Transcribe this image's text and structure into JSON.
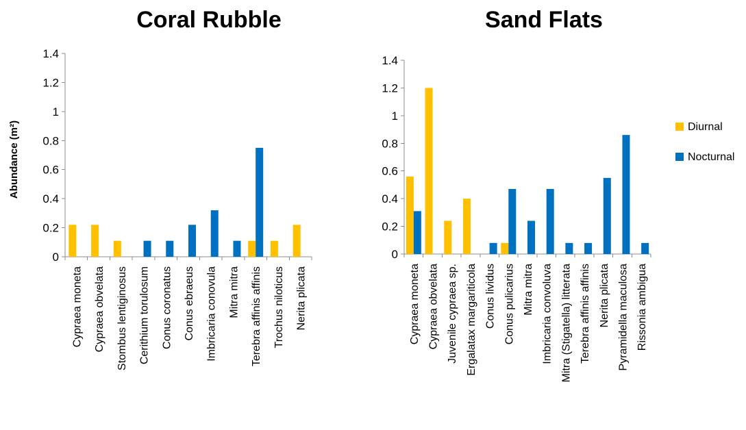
{
  "chart_data": [
    {
      "type": "bar",
      "title": "Coral Rubble",
      "ylabel": "Abundance (m²)",
      "xlabel": "",
      "ylim": [
        0,
        1.4
      ],
      "ytick_labels": [
        "0",
        "0.2",
        "0.4",
        "0.6",
        "0.8",
        "1",
        "1.2",
        "1.4"
      ],
      "grid": false,
      "categories": [
        "Cypraea moneta",
        "Cypraea obvelata",
        "Stombus lentiginosus",
        "Cerithium torulosum",
        "Conus coronatus",
        "Conus ebraeus",
        "Imbricaria conovula",
        "Mitra mitra",
        "Terebra affinis affinis",
        "Trochus niloticus",
        "Nerita plicata"
      ],
      "series": [
        {
          "name": "Diurnal",
          "color": "#FFC000",
          "values": [
            0.22,
            0.22,
            0.11,
            0,
            0,
            0,
            0,
            0,
            0.11,
            0.11,
            0.22
          ]
        },
        {
          "name": "Nocturnal",
          "color": "#0070C0",
          "values": [
            0,
            0,
            0,
            0.11,
            0.11,
            0.22,
            0.32,
            0.11,
            0.75,
            0,
            0
          ]
        }
      ]
    },
    {
      "type": "bar",
      "title": "Sand Flats",
      "ylabel": "",
      "xlabel": "",
      "ylim": [
        0,
        1.4
      ],
      "ytick_labels": [
        "0",
        "0.2",
        "0.4",
        "0.6",
        "0.8",
        "1",
        "1.2",
        "1.4"
      ],
      "grid": false,
      "legend": "right",
      "categories": [
        "Cypraea moneta",
        "Cypraea obvelata",
        "Juvenile cypraea sp.",
        "Ergalatax margariticola",
        "Conus lividus",
        "Conus pulicarius",
        "Mitra mitra",
        "Imbricaria convoluva",
        "Mitra (Stigatella) litterata",
        "Terebra affinis affinis",
        "Nerita plicata",
        "Pyramidella maculosa",
        "Rissonia ambigua"
      ],
      "series": [
        {
          "name": "Diurnal",
          "color": "#FFC000",
          "values": [
            0.56,
            1.2,
            0.24,
            0.4,
            0,
            0.08,
            0,
            0,
            0,
            0,
            0,
            0,
            0
          ]
        },
        {
          "name": "Nocturnal",
          "color": "#0070C0",
          "values": [
            0.31,
            0,
            0,
            0,
            0.08,
            0.47,
            0.24,
            0.47,
            0.08,
            0.08,
            0.55,
            0.86,
            0.08
          ]
        }
      ]
    }
  ]
}
